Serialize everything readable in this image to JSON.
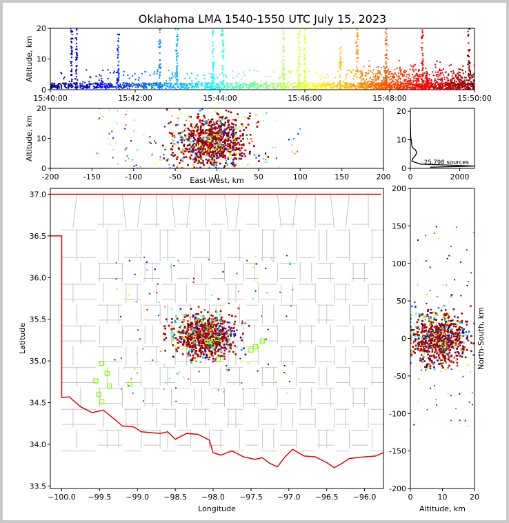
{
  "chart_data": [
    {
      "panel": "time-altitude",
      "type": "scatter",
      "title": "Oklahoma LMA 1540-1550 UTC July 15, 2023",
      "ylabel": "Altitude, km",
      "xlim": [
        "15:40:00",
        "15:50:00"
      ],
      "ylim": [
        0,
        20
      ],
      "xticks": [
        "15:40:00",
        "15:42:00",
        "15:44:00",
        "15:46:00",
        "15:48:00",
        "15:50:00"
      ],
      "yticks": [
        0,
        10,
        20
      ],
      "colormap": "jet (by time)",
      "flash_columns_time": [
        "15:40:30",
        "15:40:37",
        "15:41:36",
        "15:42:35",
        "15:42:59",
        "15:43:50",
        "15:44:04",
        "15:45:30",
        "15:45:52",
        "15:46:00",
        "15:46:50",
        "15:47:14",
        "15:47:55",
        "15:48:46",
        "15:49:52"
      ]
    },
    {
      "panel": "east-west-altitude",
      "type": "scatter",
      "xlabel": "East-West, km",
      "ylabel": "Altitude, km",
      "xlim": [
        -200,
        200
      ],
      "ylim": [
        0,
        20
      ],
      "xticks": [
        -200,
        -150,
        -100,
        -50,
        0,
        50,
        100,
        150,
        200
      ],
      "yticks": [
        0,
        10,
        20
      ],
      "cluster_center_x_km": -5,
      "cluster_center_alt_km": 9
    },
    {
      "panel": "altitude-histogram",
      "type": "line",
      "annotation": "25,798 sources",
      "xlim": [
        0,
        2600
      ],
      "ylim": [
        0,
        21
      ],
      "xticks": [
        0,
        2000
      ],
      "yticks": [
        0,
        10,
        20
      ],
      "profile": [
        [
          0.4,
          800
        ],
        [
          0.8,
          2600
        ],
        [
          1.5,
          400
        ],
        [
          2.5,
          60
        ],
        [
          3.5,
          100
        ],
        [
          4.5,
          200
        ],
        [
          5.5,
          260
        ],
        [
          6.5,
          200
        ],
        [
          7.3,
          80
        ],
        [
          8.0,
          60
        ],
        [
          9.0,
          50
        ],
        [
          10.0,
          30
        ],
        [
          11.0,
          15
        ],
        [
          12.0,
          10
        ],
        [
          13.0,
          10
        ],
        [
          14.0,
          5
        ],
        [
          15.0,
          5
        ],
        [
          16.0,
          3
        ],
        [
          17.0,
          2
        ],
        [
          18.0,
          1
        ],
        [
          19.0,
          1
        ],
        [
          20.0,
          0
        ]
      ]
    },
    {
      "panel": "plan-view-map",
      "type": "scatter",
      "xlabel": "Longitude",
      "ylabel": "Latitude",
      "xlim": [
        -100.15,
        -95.75
      ],
      "ylim": [
        33.47,
        37.07
      ],
      "xticks": [
        -100.0,
        -99.5,
        -99.0,
        -98.5,
        -98.0,
        -97.5,
        -97.0,
        -96.5,
        -96.0
      ],
      "xtick_labels": [
        "−100.0",
        "−99.5",
        "−99.0",
        "−98.5",
        "−98.0",
        "−97.5",
        "−97.0",
        "−96.5",
        "−96.0"
      ],
      "yticks": [
        33.5,
        34.0,
        34.5,
        35.0,
        35.5,
        36.0,
        36.5,
        37.0
      ],
      "ytick_labels": [
        "33.5",
        "34.0",
        "34.5",
        "35.0",
        "35.5",
        "36.0",
        "36.5",
        "37.0"
      ],
      "stations": [
        [
          -99.47,
          34.97
        ],
        [
          -99.4,
          34.85
        ],
        [
          -99.55,
          34.76
        ],
        [
          -99.51,
          34.6
        ],
        [
          -99.47,
          34.51
        ],
        [
          -99.37,
          34.7
        ],
        [
          -99.1,
          34.72
        ],
        [
          -97.95,
          35.27
        ],
        [
          -97.93,
          35.02
        ],
        [
          -98.05,
          35.23
        ],
        [
          -97.5,
          35.13
        ],
        [
          -97.44,
          35.17
        ],
        [
          -97.35,
          35.24
        ]
      ],
      "storm_center": [
        -98.1,
        35.3
      ]
    },
    {
      "panel": "altitude-north-south",
      "type": "scatter",
      "xlabel": "Altitude, km",
      "ylabel": "North-South, km",
      "xlim": [
        0,
        20
      ],
      "ylim": [
        -200,
        200
      ],
      "xticks": [
        0,
        10,
        20
      ],
      "yticks": [
        -200,
        -150,
        -100,
        -50,
        0,
        50,
        100,
        150,
        200
      ]
    }
  ]
}
